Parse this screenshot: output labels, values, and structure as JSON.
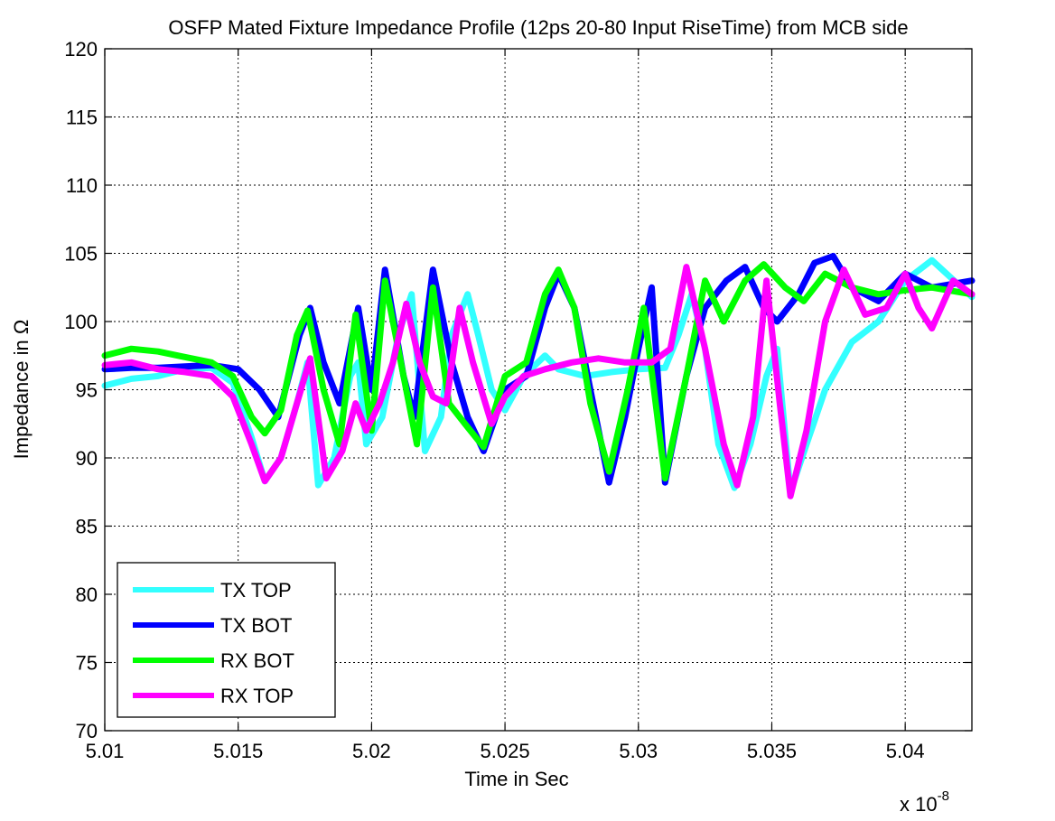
{
  "chart_data": {
    "type": "line",
    "title": "OSFP Mated Fixture Impedance Profile (12ps 20-80 Input RiseTime) from MCB side",
    "xlabel": "Time in Sec",
    "ylabel": "Impedance in Ω",
    "x_exponent_label": "x 10",
    "x_exponent_power": "-8",
    "xlim": [
      5.01,
      5.0425
    ],
    "ylim": [
      70,
      120
    ],
    "xticks": [
      "5.01",
      "5.015",
      "5.02",
      "5.025",
      "5.03",
      "5.035",
      "5.04"
    ],
    "xtick_values": [
      5.01,
      5.015,
      5.02,
      5.025,
      5.03,
      5.035,
      5.04
    ],
    "yticks": [
      "70",
      "75",
      "80",
      "85",
      "90",
      "95",
      "100",
      "105",
      "110",
      "115",
      "120"
    ],
    "ytick_values": [
      70,
      75,
      80,
      85,
      90,
      95,
      100,
      105,
      110,
      115,
      120
    ],
    "grid": true,
    "legend_position": "bottom-left",
    "series": [
      {
        "name": "TX TOP",
        "color": "#33ffff",
        "points": [
          [
            5.01,
            95.3
          ],
          [
            5.011,
            95.8
          ],
          [
            5.012,
            96.0
          ],
          [
            5.013,
            96.5
          ],
          [
            5.014,
            96.6
          ],
          [
            5.0148,
            95.5
          ],
          [
            5.0155,
            91.5
          ],
          [
            5.016,
            88.3
          ],
          [
            5.0166,
            90.0
          ],
          [
            5.0172,
            94.0
          ],
          [
            5.0176,
            97.0
          ],
          [
            5.018,
            88.0
          ],
          [
            5.0186,
            90.0
          ],
          [
            5.0192,
            96.0
          ],
          [
            5.0195,
            97.0
          ],
          [
            5.0198,
            91.0
          ],
          [
            5.0204,
            93.0
          ],
          [
            5.021,
            99.0
          ],
          [
            5.0215,
            102.0
          ],
          [
            5.022,
            90.5
          ],
          [
            5.0226,
            93.0
          ],
          [
            5.023,
            99.0
          ],
          [
            5.0236,
            102.0
          ],
          [
            5.024,
            99.0
          ],
          [
            5.0245,
            95.0
          ],
          [
            5.025,
            93.5
          ],
          [
            5.0257,
            96.0
          ],
          [
            5.0265,
            97.5
          ],
          [
            5.027,
            96.5
          ],
          [
            5.028,
            96.0
          ],
          [
            5.029,
            96.3
          ],
          [
            5.03,
            96.5
          ],
          [
            5.031,
            96.6
          ],
          [
            5.0315,
            99.0
          ],
          [
            5.032,
            102.0
          ],
          [
            5.0325,
            98.0
          ],
          [
            5.033,
            91.0
          ],
          [
            5.0336,
            87.8
          ],
          [
            5.0342,
            91.0
          ],
          [
            5.0348,
            96.0
          ],
          [
            5.0352,
            98.0
          ],
          [
            5.0357,
            87.5
          ],
          [
            5.0363,
            91.0
          ],
          [
            5.037,
            95.0
          ],
          [
            5.038,
            98.5
          ],
          [
            5.039,
            100.0
          ],
          [
            5.04,
            103.0
          ],
          [
            5.041,
            104.5
          ],
          [
            5.0425,
            101.8
          ]
        ]
      },
      {
        "name": "TX BOT",
        "color": "#0000ff",
        "points": [
          [
            5.01,
            96.5
          ],
          [
            5.011,
            96.6
          ],
          [
            5.012,
            96.6
          ],
          [
            5.013,
            96.7
          ],
          [
            5.014,
            96.8
          ],
          [
            5.015,
            96.5
          ],
          [
            5.0158,
            95.0
          ],
          [
            5.0165,
            93.0
          ],
          [
            5.0173,
            99.0
          ],
          [
            5.0177,
            101.0
          ],
          [
            5.0182,
            97.0
          ],
          [
            5.0188,
            94.0
          ],
          [
            5.0195,
            101.0
          ],
          [
            5.02,
            95.0
          ],
          [
            5.0205,
            103.8
          ],
          [
            5.0212,
            96.0
          ],
          [
            5.0216,
            93.0
          ],
          [
            5.0223,
            103.8
          ],
          [
            5.023,
            97.0
          ],
          [
            5.0236,
            93.0
          ],
          [
            5.0242,
            90.5
          ],
          [
            5.025,
            95.0
          ],
          [
            5.0258,
            96.0
          ],
          [
            5.0265,
            101.0
          ],
          [
            5.027,
            103.5
          ],
          [
            5.0276,
            101.0
          ],
          [
            5.0282,
            95.0
          ],
          [
            5.0289,
            88.2
          ],
          [
            5.0295,
            93.0
          ],
          [
            5.03,
            98.0
          ],
          [
            5.0305,
            102.5
          ],
          [
            5.031,
            88.2
          ],
          [
            5.0318,
            96.0
          ],
          [
            5.0325,
            101.0
          ],
          [
            5.0333,
            103.0
          ],
          [
            5.034,
            104.0
          ],
          [
            5.0347,
            101.0
          ],
          [
            5.0352,
            100.0
          ],
          [
            5.036,
            102.0
          ],
          [
            5.0366,
            104.3
          ],
          [
            5.0373,
            104.8
          ],
          [
            5.038,
            102.5
          ],
          [
            5.039,
            101.5
          ],
          [
            5.04,
            103.5
          ],
          [
            5.041,
            102.5
          ],
          [
            5.0425,
            103.0
          ]
        ]
      },
      {
        "name": "RX BOT",
        "color": "#00ff00",
        "points": [
          [
            5.01,
            97.5
          ],
          [
            5.011,
            98.0
          ],
          [
            5.012,
            97.8
          ],
          [
            5.013,
            97.4
          ],
          [
            5.014,
            97.0
          ],
          [
            5.0148,
            96.0
          ],
          [
            5.0155,
            93.0
          ],
          [
            5.016,
            91.8
          ],
          [
            5.0166,
            93.5
          ],
          [
            5.0172,
            99.0
          ],
          [
            5.0176,
            100.8
          ],
          [
            5.0182,
            95.0
          ],
          [
            5.0188,
            91.0
          ],
          [
            5.0194,
            100.5
          ],
          [
            5.02,
            92.0
          ],
          [
            5.0205,
            103.0
          ],
          [
            5.0212,
            96.0
          ],
          [
            5.0217,
            91.0
          ],
          [
            5.0223,
            102.5
          ],
          [
            5.0229,
            94.0
          ],
          [
            5.0235,
            92.5
          ],
          [
            5.0242,
            90.8
          ],
          [
            5.025,
            96.0
          ],
          [
            5.0258,
            97.0
          ],
          [
            5.0265,
            102.0
          ],
          [
            5.027,
            103.8
          ],
          [
            5.0276,
            101.0
          ],
          [
            5.0282,
            94.0
          ],
          [
            5.0289,
            89.0
          ],
          [
            5.0296,
            95.0
          ],
          [
            5.0302,
            101.0
          ],
          [
            5.031,
            88.5
          ],
          [
            5.0318,
            96.0
          ],
          [
            5.0325,
            103.0
          ],
          [
            5.0332,
            100.0
          ],
          [
            5.034,
            103.0
          ],
          [
            5.0347,
            104.2
          ],
          [
            5.0355,
            102.5
          ],
          [
            5.0362,
            101.5
          ],
          [
            5.037,
            103.5
          ],
          [
            5.038,
            102.5
          ],
          [
            5.039,
            102.0
          ],
          [
            5.04,
            102.3
          ],
          [
            5.041,
            102.5
          ],
          [
            5.0425,
            102.0
          ]
        ]
      },
      {
        "name": "RX TOP",
        "color": "#ff00ff",
        "points": [
          [
            5.01,
            96.8
          ],
          [
            5.011,
            97.0
          ],
          [
            5.012,
            96.5
          ],
          [
            5.013,
            96.3
          ],
          [
            5.014,
            96.0
          ],
          [
            5.0148,
            94.5
          ],
          [
            5.0155,
            91.0
          ],
          [
            5.016,
            88.3
          ],
          [
            5.0166,
            90.0
          ],
          [
            5.0172,
            94.0
          ],
          [
            5.0177,
            97.3
          ],
          [
            5.0183,
            88.5
          ],
          [
            5.0189,
            90.5
          ],
          [
            5.0194,
            94.0
          ],
          [
            5.0198,
            92.0
          ],
          [
            5.0203,
            94.0
          ],
          [
            5.0208,
            97.0
          ],
          [
            5.0213,
            101.3
          ],
          [
            5.0218,
            97.0
          ],
          [
            5.0223,
            94.5
          ],
          [
            5.0228,
            94.0
          ],
          [
            5.0233,
            101.0
          ],
          [
            5.0238,
            97.0
          ],
          [
            5.0245,
            92.5
          ],
          [
            5.025,
            94.5
          ],
          [
            5.0257,
            96.0
          ],
          [
            5.0265,
            96.5
          ],
          [
            5.0275,
            97.0
          ],
          [
            5.0285,
            97.3
          ],
          [
            5.0295,
            97.0
          ],
          [
            5.0305,
            97.0
          ],
          [
            5.0312,
            98.0
          ],
          [
            5.0318,
            104.0
          ],
          [
            5.0325,
            98.0
          ],
          [
            5.0332,
            91.0
          ],
          [
            5.0337,
            88.0
          ],
          [
            5.0343,
            93.0
          ],
          [
            5.0348,
            103.0
          ],
          [
            5.0353,
            94.0
          ],
          [
            5.0357,
            87.2
          ],
          [
            5.0363,
            92.0
          ],
          [
            5.037,
            100.0
          ],
          [
            5.0377,
            103.8
          ],
          [
            5.0385,
            100.5
          ],
          [
            5.0393,
            101.0
          ],
          [
            5.04,
            103.5
          ],
          [
            5.0405,
            101.0
          ],
          [
            5.041,
            99.5
          ],
          [
            5.0418,
            103.0
          ],
          [
            5.0425,
            102.0
          ]
        ]
      }
    ]
  }
}
